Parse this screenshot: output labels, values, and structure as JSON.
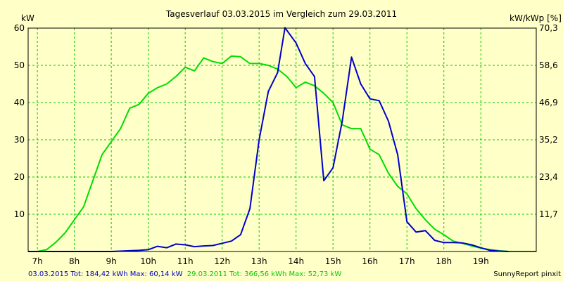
{
  "chart_data": {
    "type": "line",
    "title": "Tagesverlauf 03.03.2015 im Vergleich zum 29.03.2011",
    "ylabel_left": "kW",
    "ylabel_right": "kW/kWp [%]",
    "xticks": [
      "7h",
      "8h",
      "9h",
      "10h",
      "11h",
      "12h",
      "13h",
      "14h",
      "15h",
      "16h",
      "17h",
      "18h",
      "19h"
    ],
    "yticks_left": [
      "10",
      "20",
      "30",
      "40",
      "50",
      "60"
    ],
    "yticks_right": [
      "11,7",
      "23,4",
      "35,2",
      "46,9",
      "58,6",
      "70,3"
    ],
    "xlim": [
      6.75,
      20.5
    ],
    "ylim": [
      0,
      60
    ],
    "grid": true,
    "legend_position": "bottom",
    "footer_left_blue": "03.03.2015 Tot: 184,42 kWh Max: 60,14 kW",
    "footer_left_green": "29.03.2011 Tot: 366,56 kWh Max: 52,73 kW",
    "footer_right": "SunnyReport pinxit",
    "series": [
      {
        "color": "#0000cc",
        "x": [
          6.75,
          7.5,
          8,
          8.5,
          9,
          9.5,
          9.75,
          10,
          10.25,
          10.5,
          10.75,
          11,
          11.25,
          11.5,
          11.75,
          12,
          12.25,
          12.5,
          12.75,
          13,
          13.25,
          13.5,
          13.7,
          14,
          14.25,
          14.5,
          14.75,
          15,
          15.25,
          15.5,
          15.75,
          16,
          16.25,
          16.5,
          16.75,
          17,
          17.25,
          17.5,
          17.75,
          18,
          18.25,
          18.5,
          18.75,
          19,
          19.25,
          19.5,
          19.75
        ],
        "values": [
          0,
          0,
          0,
          0,
          0,
          0.2,
          0.3,
          0.5,
          1.4,
          1.0,
          2.0,
          1.8,
          1.3,
          1.5,
          1.6,
          2.2,
          2.8,
          4.5,
          11.5,
          30,
          43,
          48,
          60.1,
          56,
          50.5,
          47,
          19,
          22.5,
          35,
          52.2,
          45,
          41,
          40.5,
          35,
          26,
          8,
          5.2,
          5.6,
          3,
          2.4,
          2.4,
          2.3,
          1.8,
          1.0,
          0.3,
          0.1,
          0
        ]
      },
      {
        "color": "#00dd00",
        "x": [
          6.75,
          7,
          7.25,
          7.5,
          7.75,
          8,
          8.25,
          8.5,
          8.75,
          9,
          9.25,
          9.5,
          9.75,
          10,
          10.25,
          10.5,
          10.75,
          11,
          11.25,
          11.5,
          11.75,
          12,
          12.25,
          12.5,
          12.75,
          13,
          13.25,
          13.5,
          13.75,
          14,
          14.25,
          14.5,
          14.75,
          15,
          15.25,
          15.5,
          15.75,
          16,
          16.25,
          16.5,
          16.75,
          17,
          17.25,
          17.5,
          17.75,
          18,
          18.25,
          18.5,
          18.75,
          19,
          19.25,
          19.5,
          19.75,
          20.5
        ],
        "values": [
          0,
          0,
          0.5,
          2.5,
          5,
          8.5,
          12,
          19,
          26,
          29.5,
          33,
          38.5,
          39.5,
          42.5,
          44,
          45,
          47,
          49.5,
          48.5,
          52,
          51,
          50.5,
          52.5,
          52.3,
          50.5,
          50.5,
          50,
          49,
          47,
          44,
          45.5,
          44.5,
          42.5,
          40,
          34,
          33,
          33,
          27.5,
          26,
          21,
          17.5,
          15.5,
          11.5,
          8.5,
          6,
          4.5,
          2.8,
          2.2,
          1.5,
          0.9,
          0.5,
          0.2,
          0,
          0
        ]
      }
    ]
  }
}
